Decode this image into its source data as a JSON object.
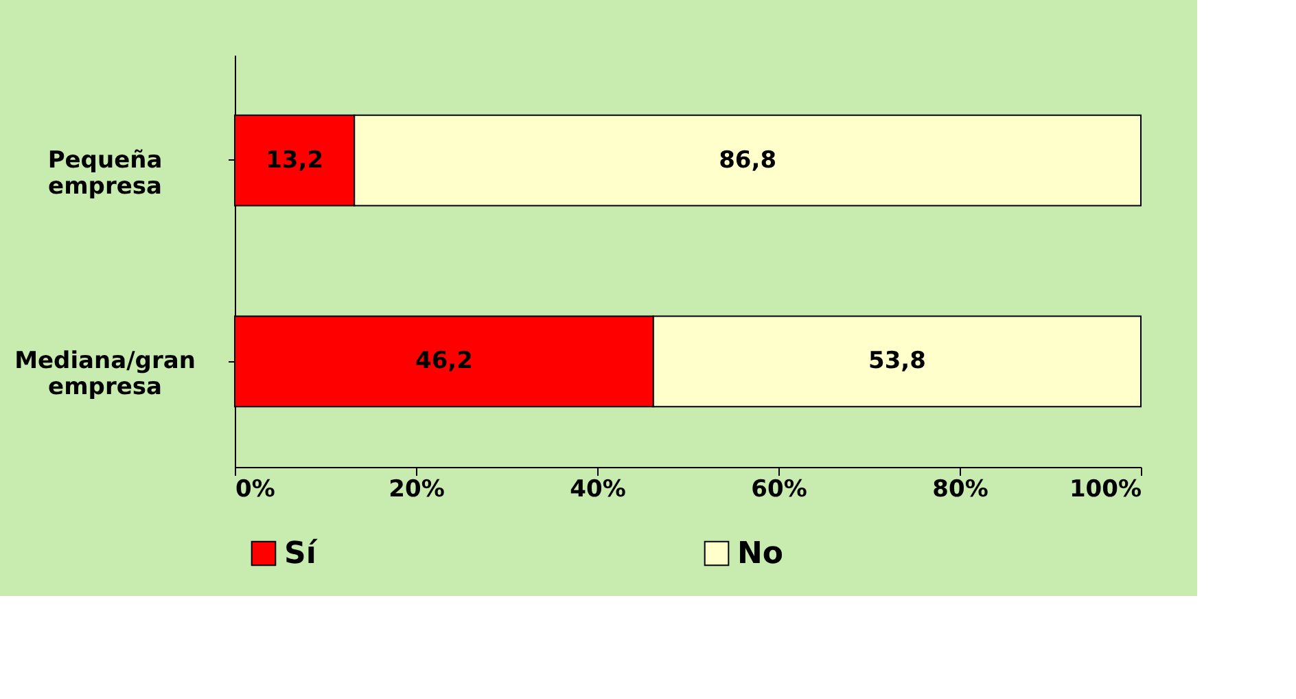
{
  "chart_data": {
    "type": "bar",
    "orientation": "horizontal",
    "stacked": true,
    "categories": [
      "Pequeña empresa",
      "Mediana/gran empresa"
    ],
    "series": [
      {
        "name": "Sí",
        "color": "#ff0000",
        "values": [
          13.2,
          46.2
        ],
        "value_labels": [
          "13,2",
          "46,2"
        ]
      },
      {
        "name": "No",
        "color": "#ffffcc",
        "values": [
          86.8,
          53.8
        ],
        "value_labels": [
          "86,8",
          "53,8"
        ]
      }
    ],
    "xlim": [
      0,
      100
    ],
    "xticks": [
      {
        "value": 0,
        "label": "0%"
      },
      {
        "value": 20,
        "label": "20%"
      },
      {
        "value": 40,
        "label": "40%"
      },
      {
        "value": 60,
        "label": "60%"
      },
      {
        "value": 80,
        "label": "80%"
      },
      {
        "value": 100,
        "label": "100%"
      }
    ],
    "grid": false,
    "legend": "bottom"
  }
}
